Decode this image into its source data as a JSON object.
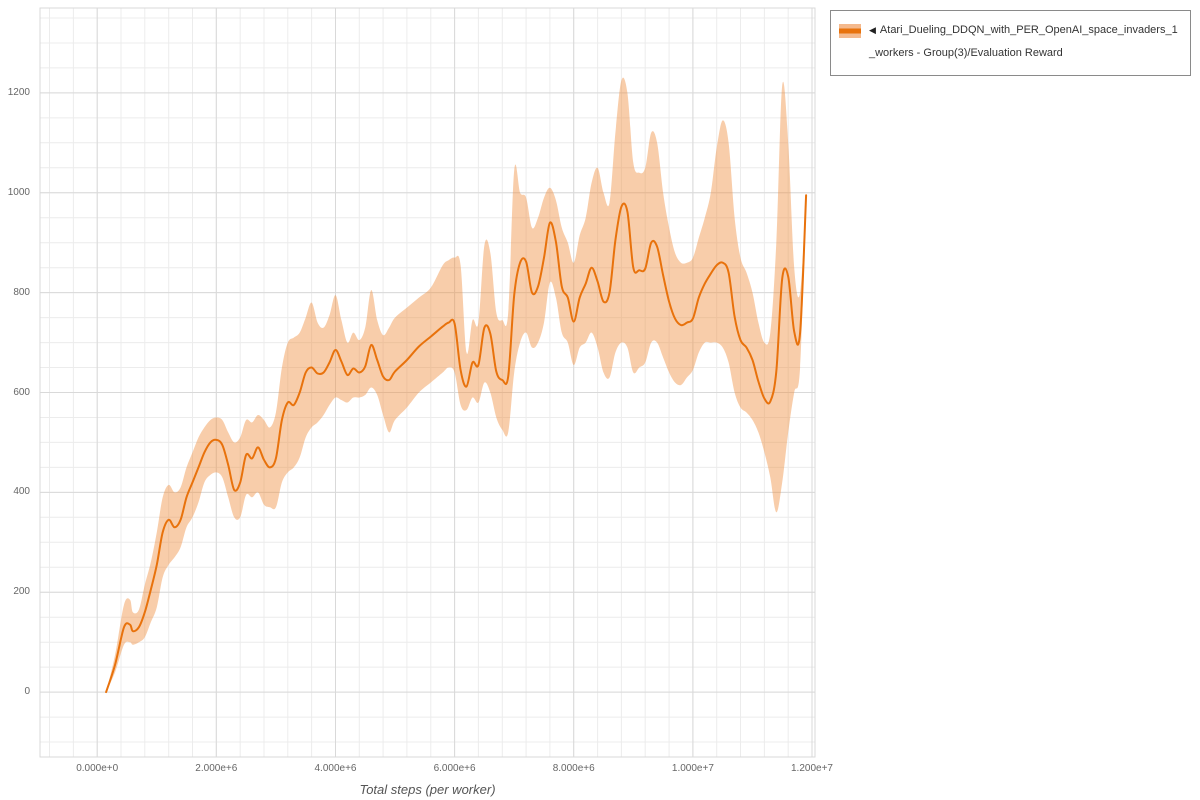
{
  "chart_data": {
    "type": "line",
    "title": "",
    "xlabel": "Total steps (per worker)",
    "ylabel": "",
    "xlim": [
      -960000,
      12050000
    ],
    "ylim": [
      -130,
      1370
    ],
    "grid": true,
    "minor_grid": {
      "x_step": 400000,
      "y_step": 50
    },
    "x_ticks": [
      {
        "value": 0,
        "label": "0.000e+0"
      },
      {
        "value": 2000000,
        "label": "2.000e+6"
      },
      {
        "value": 4000000,
        "label": "4.000e+6"
      },
      {
        "value": 6000000,
        "label": "6.000e+6"
      },
      {
        "value": 8000000,
        "label": "8.000e+6"
      },
      {
        "value": 10000000,
        "label": "1.000e+7"
      },
      {
        "value": 12000000,
        "label": "1.200e+7"
      }
    ],
    "y_ticks": [
      {
        "value": 0,
        "label": "0"
      },
      {
        "value": 200,
        "label": "200"
      },
      {
        "value": 400,
        "label": "400"
      },
      {
        "value": 600,
        "label": "600"
      },
      {
        "value": 800,
        "label": "800"
      },
      {
        "value": 1000,
        "label": "1000"
      },
      {
        "value": 1200,
        "label": "1200"
      }
    ],
    "legend": {
      "position": "top-right",
      "marker": "◀",
      "label": "Atari_Dueling_DDQN_with_PER_OpenAI_space_invaders_1_workers - Group(3)/Evaluation Reward"
    },
    "colors": {
      "line": "#e8720c",
      "band": "#f09043",
      "band_opacity": 0.45,
      "band_legend": "#f4b98d",
      "grid_major": "#d9d9d9",
      "grid_minor": "#ececec",
      "tick_text": "#666666",
      "axis_label": "#555555"
    },
    "x": [
      150000,
      300000,
      450000,
      550000,
      600000,
      700000,
      800000,
      900000,
      1000000,
      1100000,
      1200000,
      1300000,
      1400000,
      1500000,
      1600000,
      1700000,
      1800000,
      1900000,
      2000000,
      2100000,
      2200000,
      2300000,
      2400000,
      2500000,
      2600000,
      2700000,
      2800000,
      2900000,
      3000000,
      3100000,
      3200000,
      3300000,
      3400000,
      3500000,
      3600000,
      3700000,
      3800000,
      3900000,
      4000000,
      4100000,
      4200000,
      4300000,
      4400000,
      4500000,
      4600000,
      4700000,
      4800000,
      4900000,
      5000000,
      5200000,
      5400000,
      5600000,
      5800000,
      5900000,
      6000000,
      6100000,
      6200000,
      6300000,
      6400000,
      6500000,
      6600000,
      6700000,
      6800000,
      6900000,
      7000000,
      7100000,
      7200000,
      7300000,
      7400000,
      7500000,
      7600000,
      7700000,
      7800000,
      7900000,
      8000000,
      8100000,
      8200000,
      8300000,
      8400000,
      8500000,
      8600000,
      8700000,
      8800000,
      8900000,
      9000000,
      9100000,
      9200000,
      9300000,
      9400000,
      9500000,
      9600000,
      9700000,
      9800000,
      9900000,
      10000000,
      10100000,
      10200000,
      10300000,
      10400000,
      10500000,
      10600000,
      10700000,
      10800000,
      10900000,
      11000000,
      11100000,
      11200000,
      11300000,
      11400000,
      11500000,
      11600000,
      11700000,
      11800000,
      11900000
    ],
    "series": [
      {
        "name": "mean",
        "values": [
          0,
          55,
          130,
          135,
          122,
          130,
          160,
          205,
          255,
          320,
          345,
          330,
          345,
          390,
          420,
          450,
          480,
          500,
          505,
          495,
          455,
          405,
          420,
          475,
          468,
          490,
          465,
          450,
          468,
          545,
          580,
          575,
          600,
          640,
          650,
          638,
          640,
          660,
          685,
          662,
          635,
          648,
          640,
          652,
          695,
          665,
          632,
          625,
          642,
          665,
          692,
          712,
          732,
          740,
          738,
          645,
          612,
          660,
          655,
          730,
          718,
          642,
          625,
          632,
          795,
          860,
          862,
          800,
          812,
          870,
          940,
          902,
          812,
          790,
          742,
          790,
          818,
          850,
          822,
          782,
          800,
          905,
          972,
          962,
          850,
          845,
          848,
          900,
          892,
          835,
          782,
          748,
          735,
          740,
          748,
          790,
          818,
          838,
          855,
          860,
          840,
          752,
          705,
          690,
          665,
          622,
          588,
          582,
          642,
          828,
          832,
          722,
          720,
          995
        ]
      },
      {
        "name": "lower",
        "values": [
          0,
          40,
          95,
          100,
          95,
          100,
          110,
          140,
          170,
          230,
          255,
          270,
          290,
          330,
          350,
          380,
          420,
          435,
          440,
          430,
          390,
          350,
          350,
          395,
          390,
          400,
          375,
          370,
          370,
          420,
          440,
          450,
          470,
          510,
          530,
          540,
          555,
          575,
          590,
          585,
          580,
          590,
          590,
          595,
          610,
          595,
          555,
          520,
          545,
          570,
          600,
          620,
          640,
          650,
          640,
          575,
          565,
          590,
          580,
          620,
          600,
          550,
          525,
          520,
          640,
          700,
          720,
          690,
          700,
          740,
          820,
          790,
          720,
          700,
          655,
          690,
          700,
          720,
          690,
          640,
          630,
          680,
          700,
          690,
          640,
          650,
          660,
          700,
          700,
          670,
          640,
          620,
          615,
          630,
          645,
          680,
          700,
          700,
          700,
          690,
          660,
          600,
          570,
          560,
          545,
          520,
          480,
          430,
          360,
          420,
          520,
          600,
          650,
          995
        ]
      },
      {
        "name": "upper",
        "values": [
          0,
          75,
          175,
          185,
          160,
          165,
          215,
          260,
          320,
          390,
          415,
          400,
          410,
          450,
          480,
          510,
          530,
          545,
          550,
          545,
          520,
          500,
          510,
          545,
          540,
          555,
          545,
          530,
          560,
          650,
          700,
          710,
          720,
          750,
          780,
          740,
          730,
          755,
          795,
          745,
          700,
          720,
          705,
          730,
          805,
          745,
          715,
          730,
          750,
          770,
          790,
          810,
          855,
          865,
          870,
          855,
          680,
          745,
          740,
          895,
          880,
          760,
          745,
          760,
          1045,
          1000,
          990,
          930,
          950,
          990,
          1010,
          985,
          930,
          900,
          860,
          915,
          950,
          1020,
          1050,
          1000,
          980,
          1120,
          1225,
          1200,
          1060,
          1040,
          1050,
          1120,
          1100,
          1000,
          930,
          880,
          860,
          860,
          870,
          910,
          950,
          1000,
          1090,
          1145,
          1100,
          950,
          870,
          840,
          800,
          740,
          700,
          720,
          900,
          1215,
          1100,
          850,
          800,
          995
        ]
      }
    ]
  }
}
